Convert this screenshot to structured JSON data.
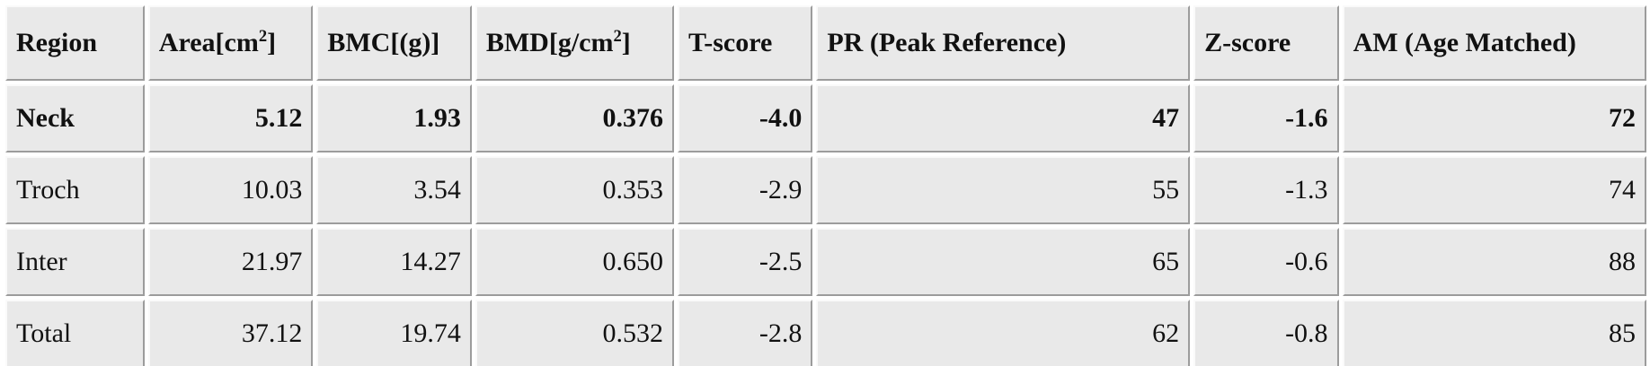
{
  "table": {
    "headers": [
      {
        "text": "Region",
        "sup": null,
        "suffix": null
      },
      {
        "text": "Area[cm",
        "sup": "2",
        "suffix": "]"
      },
      {
        "text": "BMC[(g)]",
        "sup": null,
        "suffix": null
      },
      {
        "text": "BMD[g/cm",
        "sup": "2",
        "suffix": "]"
      },
      {
        "text": "T-score",
        "sup": null,
        "suffix": null
      },
      {
        "text": "PR (Peak Reference)",
        "sup": null,
        "suffix": null
      },
      {
        "text": "Z-score",
        "sup": null,
        "suffix": null
      },
      {
        "text": "AM (Age Matched)",
        "sup": null,
        "suffix": null
      }
    ],
    "rows": [
      {
        "bold": true,
        "cells": [
          "Neck",
          "5.12",
          "1.93",
          "0.376",
          "-4.0",
          "47",
          "-1.6",
          "72"
        ]
      },
      {
        "bold": false,
        "cells": [
          "Troch",
          "10.03",
          "3.54",
          "0.353",
          "-2.9",
          "55",
          "-1.3",
          "74"
        ]
      },
      {
        "bold": false,
        "cells": [
          "Inter",
          "21.97",
          "14.27",
          "0.650",
          "-2.5",
          "65",
          "-0.6",
          "88"
        ]
      },
      {
        "bold": false,
        "cells": [
          "Total",
          "37.12",
          "19.74",
          "0.532",
          "-2.8",
          "62",
          "-0.8",
          "85"
        ]
      }
    ]
  }
}
